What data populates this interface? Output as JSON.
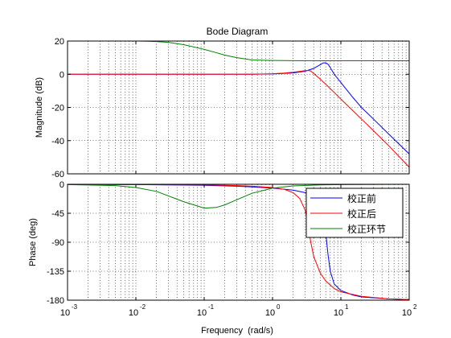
{
  "chart_data": [
    {
      "type": "line",
      "title": "Bode Diagram",
      "xlabel": "",
      "ylabel": "Magnitude (dB)",
      "xscale": "log",
      "xlim": [
        0.001,
        100
      ],
      "ylim": [
        -60,
        20
      ],
      "yticks": [
        20,
        0,
        -20,
        -40,
        -60
      ],
      "grid": "on",
      "series": [
        {
          "name": "校正前",
          "color": "#0000ff",
          "x": [
            0.001,
            0.5,
            1,
            2,
            3,
            4,
            5,
            5.5,
            6,
            6.5,
            7,
            8,
            10,
            15,
            20,
            30,
            50,
            100
          ],
          "y": [
            0,
            0,
            0.2,
            0.8,
            1.8,
            3.5,
            5.8,
            6.8,
            6.9,
            6,
            4,
            0,
            -5,
            -14,
            -20,
            -27,
            -36,
            -48
          ]
        },
        {
          "name": "校正后",
          "color": "#ff0000",
          "x": [
            0.001,
            0.5,
            1,
            1.5,
            2,
            2.5,
            3,
            3.3,
            3.6,
            4,
            5,
            6,
            8,
            10,
            15,
            20,
            30,
            50,
            100
          ],
          "y": [
            0,
            0,
            0.3,
            0.7,
            1.2,
            1.7,
            2.2,
            2.3,
            2,
            0.5,
            -3,
            -6,
            -11,
            -15,
            -22,
            -27,
            -34,
            -43,
            -56
          ]
        },
        {
          "name": "校正环节",
          "color": "#008000",
          "x": [
            0.001,
            0.01,
            0.015,
            0.02,
            0.03,
            0.05,
            0.1,
            0.15,
            0.2,
            0.3,
            0.5,
            1,
            2,
            5,
            10,
            100
          ],
          "y": [
            20,
            20,
            19.9,
            19.7,
            19.2,
            17.8,
            15,
            13,
            11.5,
            10,
            8.6,
            8.3,
            8.2,
            8.1,
            8.1,
            8.1
          ]
        }
      ]
    },
    {
      "type": "line",
      "title": "",
      "xlabel": "Frequency  (rad/s)",
      "ylabel": "Phase (deg)",
      "xscale": "log",
      "xlim": [
        0.001,
        100
      ],
      "ylim": [
        -180,
        0
      ],
      "xticks": [
        "10",
        "10",
        "10",
        "10",
        "10",
        "10"
      ],
      "xtick_exponents": [
        "-3",
        "-2",
        "-1",
        "0",
        "1",
        "2"
      ],
      "yticks": [
        0,
        -45,
        -90,
        -135,
        -180
      ],
      "grid": "on",
      "legend": "top-right",
      "series": [
        {
          "name": "校正前",
          "color": "#0000ff",
          "x": [
            0.001,
            0.01,
            0.1,
            0.3,
            0.5,
            1,
            2,
            3,
            4,
            5,
            5.5,
            6,
            6.5,
            7,
            8,
            10,
            15,
            20,
            50,
            100
          ],
          "y": [
            0,
            -0.5,
            -1.5,
            -3,
            -4,
            -6,
            -9,
            -13,
            -19,
            -33,
            -48,
            -75,
            -110,
            -135,
            -155,
            -165,
            -172,
            -175,
            -178,
            -179
          ]
        },
        {
          "name": "校正后",
          "color": "#ff0000",
          "x": [
            0.001,
            0.1,
            0.3,
            0.5,
            1,
            1.5,
            2,
            2.5,
            3,
            3.3,
            3.6,
            4,
            5,
            6,
            8,
            10,
            20,
            50,
            100
          ],
          "y": [
            0,
            -1,
            -2,
            -3,
            -5,
            -8,
            -13,
            -22,
            -40,
            -62,
            -88,
            -112,
            -138,
            -150,
            -162,
            -167,
            -174,
            -178,
            -179
          ]
        },
        {
          "name": "校正环节",
          "color": "#008000",
          "x": [
            0.001,
            0.005,
            0.01,
            0.02,
            0.05,
            0.1,
            0.15,
            0.2,
            0.3,
            0.5,
            1,
            2,
            5,
            10,
            100
          ],
          "y": [
            -0.5,
            -2,
            -5,
            -11,
            -27,
            -37,
            -36,
            -32,
            -24,
            -14,
            -6,
            -2.5,
            -1,
            -0.5,
            0
          ]
        }
      ]
    }
  ]
}
